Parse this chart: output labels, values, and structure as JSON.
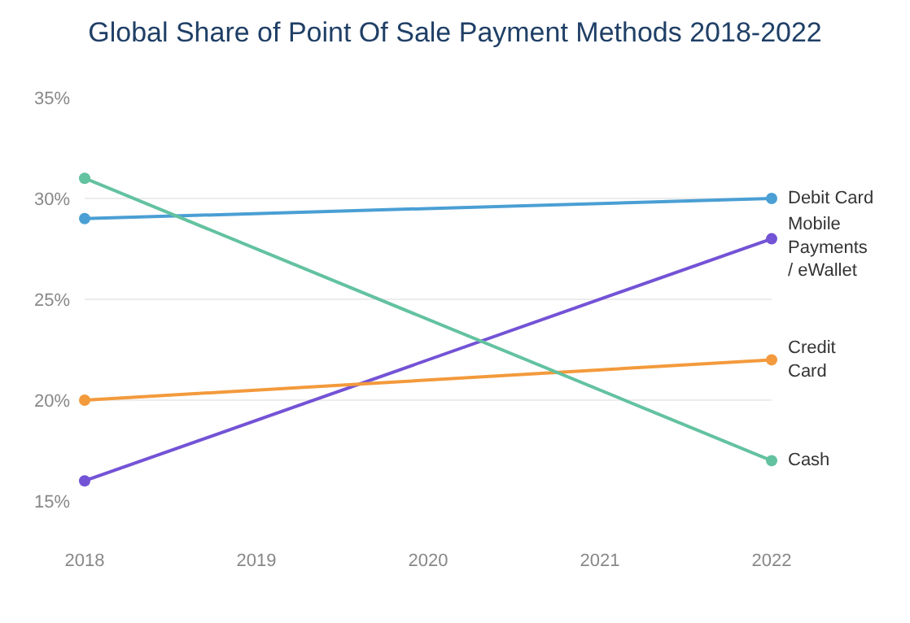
{
  "chart_data": {
    "type": "line",
    "title": "Global Share of Point Of Sale Payment Methods 2018-2022",
    "x": [
      2018,
      2022
    ],
    "series": [
      {
        "name": "Debit Card",
        "color": "#4a9fd4",
        "values": [
          29,
          30
        ]
      },
      {
        "name": "Mobile Payments / eWallet",
        "color": "#7353d6",
        "values": [
          16,
          28
        ]
      },
      {
        "name": "Credit Card",
        "color": "#f39a3c",
        "values": [
          20,
          22
        ]
      },
      {
        "name": "Cash",
        "color": "#63c2a0",
        "values": [
          31,
          17
        ]
      }
    ],
    "xlim": [
      2018,
      2022
    ],
    "xticks": [
      2018,
      2019,
      2020,
      2021,
      2022
    ],
    "ylim": [
      15,
      35
    ],
    "yticks": [
      {
        "value": 15,
        "label": "15%"
      },
      {
        "value": 20,
        "label": "20%"
      },
      {
        "value": 25,
        "label": "25%"
      },
      {
        "value": 30,
        "label": "30%"
      },
      {
        "value": 35,
        "label": "35%"
      }
    ],
    "grid": "y",
    "marker": "circle",
    "line_style": "solid",
    "legend": false
  }
}
